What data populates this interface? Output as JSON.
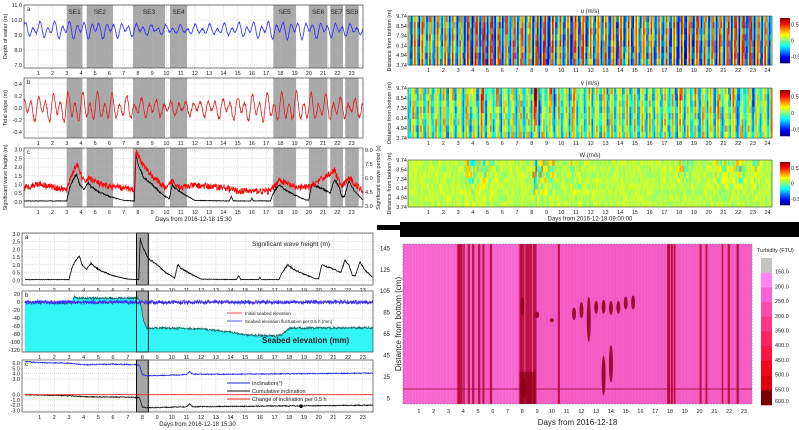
{
  "chart_data": [
    {
      "id": "tl_a",
      "type": "line",
      "panel_label": "a",
      "ylabel": "Depth of water (m)",
      "xlim": [
        0,
        23.8
      ],
      "ylim": [
        6.8,
        11
      ],
      "yticks": [
        7,
        8,
        9,
        10,
        11
      ],
      "ytick_labels": [
        "7.0",
        "8.0",
        "9.0",
        "10.0",
        "11.0"
      ],
      "xticks": [
        1,
        2,
        3,
        4,
        5,
        6,
        7,
        8,
        9,
        10,
        11,
        12,
        13,
        14,
        15,
        16,
        17,
        18,
        19,
        20,
        21,
        22,
        23
      ],
      "shaded_events": [
        {
          "label": "SE1",
          "start": 3.0,
          "end": 4.1
        },
        {
          "label": "SE2",
          "start": 4.4,
          "end": 6.25
        },
        {
          "label": "SE3",
          "start": 7.65,
          "end": 9.9
        },
        {
          "label": "SE4",
          "start": 10.25,
          "end": 11.45
        },
        {
          "label": "SE5",
          "start": 17.5,
          "end": 19.1
        },
        {
          "label": "SE6",
          "start": 20.0,
          "end": 21.3
        },
        {
          "label": "SE7",
          "start": 21.5,
          "end": 22.4
        },
        {
          "label": "SE8",
          "start": 22.55,
          "end": 23.5
        }
      ],
      "series": [
        {
          "name": "Depth of water",
          "color": "#2b2bff",
          "model": "harmonic",
          "mean": 9.35,
          "components": [
            {
              "amp": 0.38,
              "period_days": 0.5175,
              "phase": 0.3
            },
            {
              "amp": 0.28,
              "period_days": 0.9973,
              "phase": 1.2
            }
          ],
          "noise": 0.05
        }
      ]
    },
    {
      "id": "tl_b",
      "type": "line",
      "panel_label": "b",
      "ylabel": "Tidal slope (m)",
      "xlim": [
        0,
        23.8
      ],
      "ylim": [
        -0.5,
        0.5
      ],
      "yticks": [
        -0.4,
        -0.2,
        0,
        0.2,
        0.4
      ],
      "ytick_labels": [
        "-0.4",
        "-0.2",
        "0.0",
        "0.2",
        "0.4"
      ],
      "xticks": [
        1,
        2,
        3,
        4,
        5,
        6,
        7,
        8,
        9,
        10,
        11,
        12,
        13,
        14,
        15,
        16,
        17,
        18,
        19,
        20,
        21,
        22,
        23
      ],
      "series": [
        {
          "name": "Tidal slope",
          "color": "#e02020",
          "model": "harmonic",
          "mean": 0,
          "components": [
            {
              "amp": 0.17,
              "period_days": 0.5175,
              "phase": 1.8
            },
            {
              "amp": 0.1,
              "period_days": 0.9973,
              "phase": 0.4
            }
          ],
          "noise": 0.03
        }
      ]
    },
    {
      "id": "tl_c",
      "type": "line",
      "panel_label": "c",
      "ylabel": "Significant wave height (m)",
      "y2label": "Significant wave period (s)",
      "xlabel": "Days from 2016-12-18 15:30",
      "xlim": [
        0,
        23.8
      ],
      "ylim": [
        -0.3,
        3.1
      ],
      "y2lim": [
        2.9,
        9.2
      ],
      "yticks": [
        0,
        0.5,
        1,
        1.5,
        2,
        2.5,
        3
      ],
      "ytick_labels": [
        "0.0",
        "0.5",
        "1.0",
        "1.5",
        "2.0",
        "2.5",
        "3.0"
      ],
      "y2ticks": [
        3,
        4.5,
        6,
        7.5,
        9
      ],
      "y2tick_labels": [
        "3.0",
        "4.5",
        "6.0",
        "7.5",
        "9.0"
      ],
      "xticks": [
        1,
        2,
        3,
        4,
        5,
        6,
        7,
        8,
        9,
        10,
        11,
        12,
        13,
        14,
        15,
        16,
        17,
        18,
        19,
        20,
        21,
        22,
        23
      ],
      "series": [
        {
          "name": "Significant wave height",
          "color": "#000000",
          "axis": "left",
          "model": "breakpoints",
          "x": [
            0,
            3.0,
            3.2,
            3.4,
            3.7,
            3.9,
            4.2,
            4.5,
            4.7,
            5.2,
            6.0,
            7.0,
            7.75,
            7.85,
            8.0,
            8.4,
            9.0,
            9.6,
            10.2,
            10.4,
            10.6,
            11.2,
            12.0,
            14.4,
            14.55,
            14.7,
            15.9,
            16.0,
            16.1,
            17.3,
            17.5,
            17.9,
            18.3,
            19.0,
            19.8,
            20.0,
            20.2,
            20.8,
            21.3,
            21.5,
            21.8,
            22.1,
            22.3,
            22.5,
            22.8,
            23.2,
            23.8
          ],
          "y": [
            0.05,
            0.05,
            0.8,
            1.2,
            1.6,
            1.0,
            0.7,
            1.1,
            0.9,
            0.6,
            0.3,
            0.08,
            0.05,
            2.7,
            2.2,
            1.4,
            1.0,
            0.5,
            0.15,
            1.0,
            0.8,
            0.45,
            0.08,
            0.05,
            0.3,
            0.05,
            0.05,
            0.2,
            0.05,
            0.05,
            0.5,
            1.0,
            0.7,
            0.4,
            0.1,
            0.1,
            1.0,
            0.8,
            0.6,
            0.5,
            1.3,
            0.9,
            0.3,
            0.3,
            1.2,
            0.6,
            0.1
          ],
          "noise": 0.06
        },
        {
          "name": "Significant wave period",
          "color": "#ff0000",
          "axis": "right",
          "model": "breakpoints",
          "x": [
            0,
            1.0,
            3.0,
            3.2,
            3.7,
            4.2,
            4.6,
            5.5,
            6.5,
            7.75,
            7.85,
            8.3,
            9.0,
            10.0,
            10.4,
            11.0,
            12,
            14,
            15,
            17.3,
            17.9,
            19,
            20,
            21.8,
            22.3,
            22.8,
            23.8
          ],
          "y": [
            4.9,
            5.4,
            4.7,
            5.8,
            7.5,
            5.6,
            6.0,
            5.2,
            5.0,
            4.8,
            9.0,
            7.5,
            6.2,
            4.8,
            5.7,
            5.0,
            5.2,
            5.0,
            4.6,
            4.6,
            5.8,
            5.0,
            5.0,
            6.8,
            5.0,
            6.0,
            4.6
          ],
          "noise": 0.35
        }
      ]
    },
    {
      "id": "bl_a",
      "type": "line",
      "panel_label": "a",
      "annotation": "Significant wave height (m)",
      "xlim": [
        -0.2,
        23.7
      ],
      "ylim": [
        -0.3,
        3.05
      ],
      "highlight_days": [
        7.6,
        8.4
      ],
      "yticks": [
        0,
        0.5,
        1,
        1.5,
        2,
        2.5,
        3
      ],
      "ytick_labels": [
        "0.0",
        "0.5",
        "1.0",
        "1.5",
        "2.0",
        "2.5",
        "3.0"
      ],
      "xticks": [
        1,
        2,
        3,
        4,
        5,
        6,
        7,
        8,
        9,
        10,
        11,
        12,
        13,
        14,
        15,
        16,
        17,
        18,
        19,
        20,
        21,
        22,
        23
      ],
      "series": [
        {
          "name": "Significant wave height",
          "color": "#000000",
          "same_as": "tl_c"
        }
      ]
    },
    {
      "id": "bl_b",
      "type": "area",
      "panel_label": "b",
      "annotation": "Seabed elevation (mm)",
      "xlim": [
        -0.2,
        23.7
      ],
      "ylim": [
        -125,
        28
      ],
      "yticks": [
        20,
        0,
        -20,
        -40,
        -60,
        -80,
        -100,
        -120
      ],
      "ytick_labels": [
        "20",
        "0",
        "-20",
        "-40",
        "-60",
        "-80",
        "-100",
        "-120"
      ],
      "xticks": [
        1,
        2,
        3,
        4,
        5,
        6,
        7,
        8,
        9,
        10,
        11,
        12,
        13,
        14,
        15,
        16,
        17,
        18,
        19,
        20,
        21,
        22,
        23
      ],
      "legend": [
        "Initial seabed elevation",
        "Seabed elevation fluctuation per 0.5 h (mm)"
      ],
      "series": [
        {
          "name": "Seabed elevation",
          "color": "#1a6b6b",
          "fill": "#33f5f5",
          "model": "breakpoints",
          "x": [
            0,
            3.2,
            3.35,
            3.5,
            7.7,
            7.85,
            8.1,
            8.3,
            10,
            12,
            14,
            15,
            17,
            17.5,
            17.9,
            18.2,
            20,
            23.8
          ],
          "y": [
            0,
            -3,
            15,
            10,
            10,
            0,
            -50,
            -65,
            -65,
            -67,
            -75,
            -82,
            -85,
            -82,
            -68,
            -65,
            -65,
            -64
          ],
          "noise": 2.5
        },
        {
          "name": "Initial seabed elevation",
          "color": "#ff2020",
          "model": "constant",
          "value": 0
        },
        {
          "name": "Seabed elevation fluctuation per 0.5 h",
          "color": "#3030ff",
          "model": "constant",
          "value": 0,
          "noise": 5
        }
      ]
    },
    {
      "id": "bl_c",
      "type": "line",
      "panel_label": "c",
      "xlabel": "Days from 2016-12-18 15:30",
      "xlim": [
        -0.2,
        23.7
      ],
      "ylim": [
        -3.3,
        6.6
      ],
      "yticks": [
        6,
        5,
        4,
        3,
        0,
        -1,
        -2,
        -3
      ],
      "ytick_labels": [
        "6.0",
        "5.0",
        "4.0",
        "3.0",
        "0.0",
        "-1.0",
        "-2.0",
        "-3.0"
      ],
      "xticks": [
        1,
        2,
        3,
        4,
        5,
        6,
        7,
        8,
        9,
        10,
        11,
        12,
        13,
        14,
        15,
        16,
        17,
        18,
        19,
        20,
        21,
        22,
        23
      ],
      "legend": [
        "Inclination(°)",
        "Cumulative inclination",
        "Change of inclination per 0.5 h"
      ],
      "marker_point": {
        "day": 18.8,
        "value": -2.2
      },
      "series": [
        {
          "name": "Inclination(°)",
          "color": "#2222ee",
          "model": "breakpoints",
          "x": [
            0,
            1,
            3,
            4,
            6,
            7.5,
            7.8,
            8.0,
            8.3,
            11,
            11.2,
            11.4,
            14,
            23.8
          ],
          "y": [
            6.3,
            6.1,
            6.0,
            5.7,
            5.8,
            5.7,
            5.6,
            3.8,
            3.6,
            3.8,
            4.4,
            3.9,
            3.9,
            4.1
          ],
          "noise": 0.08
        },
        {
          "name": "Cumulative inclination",
          "color": "#111111",
          "model": "breakpoints",
          "x": [
            0,
            3,
            4,
            7.5,
            7.8,
            8.0,
            8.3,
            11,
            11.2,
            11.4,
            23.8
          ],
          "y": [
            0,
            -0.2,
            -0.4,
            -0.5,
            -0.6,
            -2.3,
            -2.5,
            -2.3,
            -1.8,
            -2.3,
            -2.0
          ],
          "noise": 0.08
        },
        {
          "name": "Change of inclination per 0.5 h",
          "color": "#ff2020",
          "model": "constant",
          "value": 0,
          "noise": 0.03
        }
      ]
    },
    {
      "id": "u",
      "type": "heatmap",
      "title": "u (m/s)",
      "ylabel": "Distance from bottom (m)",
      "xlim": [
        -0.4,
        24.3
      ],
      "ytick_labels": [
        "9.74",
        "8.54",
        "7.34",
        "6.14",
        "4.94",
        "3.74"
      ],
      "xticks": [
        1,
        2,
        3,
        4,
        5,
        6,
        7,
        8,
        9,
        10,
        11,
        12,
        13,
        14,
        15,
        16,
        17,
        18,
        19,
        20,
        21,
        22,
        23,
        24
      ],
      "clim": [
        -0.7,
        0.7
      ],
      "colormap": "jet",
      "colorbar_ticks": [
        0.5,
        0,
        -0.5
      ],
      "colorbar_labels": [
        "0.5",
        "0",
        "-0.5"
      ],
      "pattern": {
        "tidal_period_days": 0.5175,
        "base_amp": 0.45,
        "storm_gain": 0.35
      }
    },
    {
      "id": "v",
      "type": "heatmap",
      "title": "v (m/s)",
      "ylabel": "Distance from bottom (m)",
      "xlim": [
        -0.4,
        24.3
      ],
      "ytick_labels": [
        "9.74",
        "8.54",
        "7.34",
        "6.14",
        "4.94",
        "3.74"
      ],
      "xticks": [
        1,
        2,
        3,
        4,
        5,
        6,
        7,
        8,
        9,
        10,
        11,
        12,
        13,
        14,
        15,
        16,
        17,
        18,
        19,
        20,
        21,
        22,
        23,
        24
      ],
      "clim": [
        -0.7,
        0.7
      ],
      "colormap": "jet",
      "colorbar_ticks": [
        0.5,
        0,
        -0.5
      ],
      "colorbar_labels": [
        "0.5",
        "0",
        "-0.5"
      ],
      "pattern": {
        "tidal_period_days": 0.5175,
        "base_amp": 0.3,
        "storm_gain": 0.45
      }
    },
    {
      "id": "w",
      "type": "heatmap",
      "title": "W (m/s)",
      "ylabel": "Distance from bottom (m)",
      "xlabel": "Days from 2016-12-18 09:00:00",
      "xlim": [
        -0.4,
        24.3
      ],
      "ytick_labels": [
        "9.74",
        "8.54",
        "7.34",
        "6.14",
        "4.94",
        "3.74"
      ],
      "xticks": [
        1,
        2,
        3,
        4,
        5,
        6,
        7,
        8,
        9,
        10,
        11,
        12,
        13,
        14,
        15,
        16,
        17,
        18,
        19,
        20,
        21,
        22,
        23,
        24
      ],
      "clim": [
        -0.7,
        0.7
      ],
      "colormap": "jet",
      "colorbar_ticks": [
        0.5,
        0,
        -0.5
      ],
      "colorbar_labels": [
        "0.5",
        "0",
        "-0.5"
      ],
      "pattern": {
        "tidal_period_days": 0.5175,
        "base_amp": 0.06,
        "storm_gain": 0.7
      }
    },
    {
      "id": "turbidity",
      "type": "heatmap",
      "ylabel": "Distance from bottom (cm)",
      "xlabel": "Days from 2016-12-18",
      "xlim": [
        -0.08,
        23.55
      ],
      "ylim": [
        0,
        149
      ],
      "yticks": [
        145,
        125,
        105,
        85,
        65,
        45,
        25,
        5
      ],
      "ytick_labels": [
        "145",
        "125",
        "105",
        "85",
        "65",
        "45",
        "25",
        "5"
      ],
      "xticks": [
        1,
        2,
        3,
        4,
        5,
        6,
        7,
        8,
        9,
        10,
        11,
        12,
        13,
        14,
        15,
        16,
        17,
        18,
        19,
        20,
        21,
        22,
        23
      ],
      "colorbar_title": "Turbidity (FTU)",
      "colorbar_levels": [
        "150.0",
        "200.0",
        "250.0",
        "300.0",
        "350.0",
        "400.0",
        "450.0",
        "500.0",
        "550.0",
        "600.0"
      ],
      "colorbar_colors": [
        "#c4c4c4",
        "#ff86f2",
        "#ff62d6",
        "#ff4aaa",
        "#ff3585",
        "#ff2262",
        "#ff1244",
        "#f5061f",
        "#e00010",
        "#7a0000"
      ],
      "background_ftu": 230,
      "high_turbidity_stripes_days": [
        3.6,
        3.7,
        3.85,
        4.0,
        4.3,
        4.6,
        5.0,
        5.3,
        5.8,
        7.8,
        7.9,
        8.05,
        8.2,
        8.35,
        8.5,
        8.7,
        8.85,
        10.4,
        17.8,
        17.9,
        18.05,
        18.25,
        20.0,
        20.4,
        21.5,
        21.9,
        22.5
      ],
      "near_bed_line_cm": 14,
      "blobs": [
        {
          "day": 8.0,
          "cm": [
            82,
            100
          ]
        },
        {
          "day": 9.0,
          "cm": [
            80,
            86
          ]
        },
        {
          "day": 10.0,
          "cm": [
            76,
            80
          ]
        },
        {
          "day": 11.5,
          "cm": [
            78,
            90
          ]
        },
        {
          "day": 12.0,
          "cm": [
            80,
            95
          ]
        },
        {
          "day": 12.5,
          "cm": [
            58,
            100
          ]
        },
        {
          "day": 13.0,
          "cm": [
            84,
            96
          ]
        },
        {
          "day": 13.5,
          "cm": [
            84,
            97
          ]
        },
        {
          "day": 14.0,
          "cm": [
            83,
            96
          ]
        },
        {
          "day": 14.5,
          "cm": [
            84,
            96
          ]
        },
        {
          "day": 15.0,
          "cm": [
            88,
            100
          ]
        },
        {
          "day": 15.5,
          "cm": [
            88,
            101
          ]
        },
        {
          "day": 13.5,
          "cm": [
            8,
            45
          ]
        },
        {
          "day": 14.0,
          "cm": [
            20,
            55
          ]
        },
        {
          "day": 8.1,
          "cm": [
            5,
            25
          ]
        }
      ]
    }
  ]
}
